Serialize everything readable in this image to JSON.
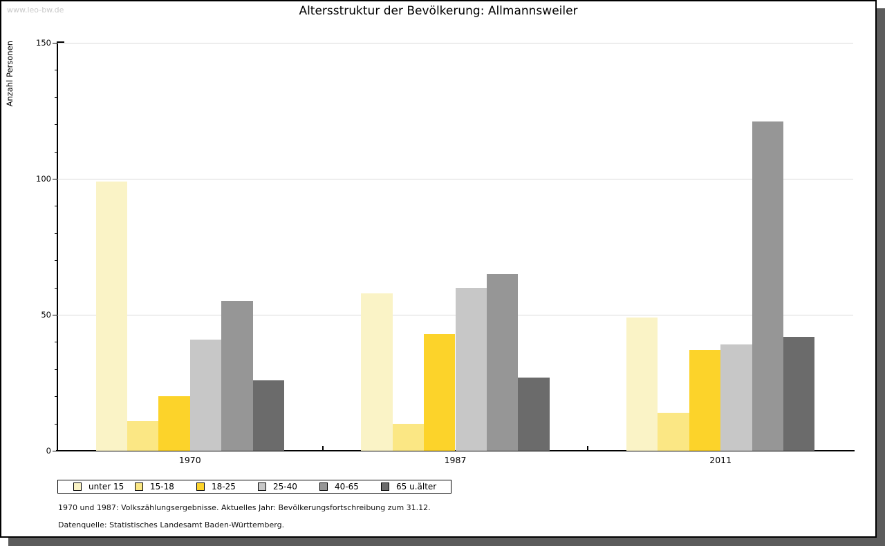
{
  "page": {
    "watermark": "www.leo-bw.de",
    "title": "Altersstruktur der Bevölkerung: Allmannsweiler",
    "footnotes": [
      "1970 und 1987: Volkszählungsergebnisse. Aktuelles Jahr: Bevölkerungsfortschreibung zum 31.12.",
      "Datenquelle: Statistisches Landesamt Baden-Württemberg."
    ]
  },
  "chart_data": {
    "type": "bar",
    "title": "Altersstruktur der Bevölkerung: Allmannsweiler",
    "xlabel": "",
    "ylabel": "Anzahl Personen",
    "categories": [
      "1970",
      "1987",
      "2011"
    ],
    "series": [
      {
        "name": "unter 15",
        "color": "#FAF3C6",
        "values": [
          99,
          58,
          49
        ]
      },
      {
        "name": "15-18",
        "color": "#FBE784",
        "values": [
          11,
          10,
          14
        ]
      },
      {
        "name": "18-25",
        "color": "#FCD32A",
        "values": [
          20,
          43,
          37
        ]
      },
      {
        "name": "25-40",
        "color": "#C7C7C7",
        "values": [
          41,
          60,
          39
        ]
      },
      {
        "name": "40-65",
        "color": "#969696",
        "values": [
          55,
          65,
          121
        ]
      },
      {
        "name": "65 u.älter",
        "color": "#6B6B6B",
        "values": [
          26,
          27,
          42
        ]
      }
    ],
    "ylim": [
      0,
      150
    ],
    "yticks": [
      0,
      50,
      100,
      150
    ],
    "minor_tick_step": 10,
    "grid": true,
    "grid_color": "#d9d9d9",
    "legend_position": "bottom-left",
    "frame_shadow_color": "#5c5c5c"
  }
}
